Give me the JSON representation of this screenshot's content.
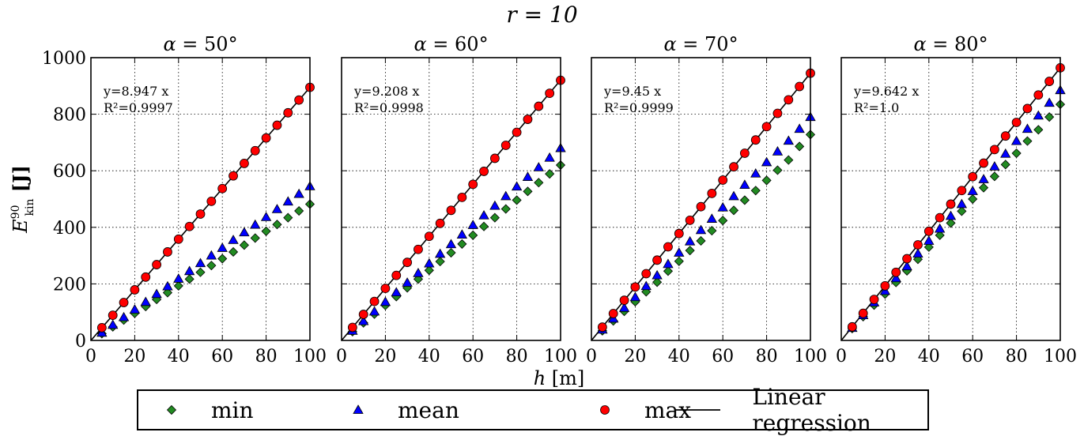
{
  "figure": {
    "suptitle": "r = 10",
    "xlabel": "h [m]",
    "ylabel": "E_kin^90 [J]"
  },
  "legend": {
    "items": [
      {
        "label": "min",
        "color": "#228B22",
        "marker": "diamond"
      },
      {
        "label": "mean",
        "color": "#0000FF",
        "marker": "triangle"
      },
      {
        "label": "max",
        "color": "#FF0000",
        "marker": "circle"
      },
      {
        "label": "Linear regression",
        "color": "#000000",
        "marker": "line"
      }
    ]
  },
  "chart_data": [
    {
      "type": "scatter",
      "title": "α = 50°",
      "annotation": {
        "equation": "y=8.947 x",
        "r2": "R²=0.9997"
      },
      "xlim": [
        0,
        100
      ],
      "ylim": [
        0,
        1000
      ],
      "xticks": [
        0,
        20,
        40,
        60,
        80,
        100
      ],
      "yticks": [
        0,
        200,
        400,
        600,
        800,
        1000
      ],
      "grid": true,
      "x": [
        5,
        10,
        15,
        20,
        25,
        30,
        35,
        40,
        45,
        50,
        55,
        60,
        65,
        70,
        75,
        80,
        85,
        90,
        95,
        100
      ],
      "regression_slope": 8.947,
      "series": [
        {
          "name": "min",
          "values": [
            24,
            48,
            72,
            96,
            120,
            145,
            169,
            193,
            217,
            241,
            265,
            289,
            313,
            337,
            362,
            386,
            410,
            434,
            458,
            482
          ]
        },
        {
          "name": "mean",
          "values": [
            27,
            55,
            82,
            109,
            136,
            164,
            191,
            218,
            245,
            273,
            300,
            327,
            355,
            382,
            409,
            436,
            464,
            491,
            518,
            545
          ]
        },
        {
          "name": "max",
          "values": [
            45,
            89,
            134,
            179,
            224,
            268,
            313,
            358,
            403,
            447,
            492,
            537,
            582,
            626,
            671,
            716,
            761,
            805,
            850,
            895
          ]
        }
      ]
    },
    {
      "type": "scatter",
      "title": "α = 60°",
      "annotation": {
        "equation": "y=9.208 x",
        "r2": "R²=0.9998"
      },
      "xlim": [
        0,
        100
      ],
      "ylim": [
        0,
        1000
      ],
      "xticks": [
        0,
        20,
        40,
        60,
        80,
        100
      ],
      "yticks": [
        0,
        200,
        400,
        600,
        800,
        1000
      ],
      "grid": true,
      "x": [
        5,
        10,
        15,
        20,
        25,
        30,
        35,
        40,
        45,
        50,
        55,
        60,
        65,
        70,
        75,
        80,
        85,
        90,
        95,
        100
      ],
      "regression_slope": 9.208,
      "series": [
        {
          "name": "min",
          "values": [
            31,
            62,
            93,
            124,
            155,
            186,
            217,
            248,
            279,
            310,
            341,
            372,
            403,
            434,
            465,
            496,
            527,
            558,
            589,
            620
          ]
        },
        {
          "name": "mean",
          "values": [
            34,
            68,
            102,
            136,
            170,
            204,
            238,
            272,
            306,
            340,
            374,
            408,
            442,
            476,
            510,
            544,
            578,
            612,
            646,
            680
          ]
        },
        {
          "name": "max",
          "values": [
            46,
            92,
            138,
            184,
            230,
            276,
            322,
            368,
            414,
            460,
            506,
            552,
            598,
            644,
            690,
            736,
            782,
            828,
            874,
            920
          ]
        }
      ]
    },
    {
      "type": "scatter",
      "title": "α = 70°",
      "annotation": {
        "equation": "y=9.45 x",
        "r2": "R²=0.9999"
      },
      "xlim": [
        0,
        100
      ],
      "ylim": [
        0,
        1000
      ],
      "xticks": [
        0,
        20,
        40,
        60,
        80,
        100
      ],
      "yticks": [
        0,
        200,
        400,
        600,
        800,
        1000
      ],
      "grid": true,
      "x": [
        5,
        10,
        15,
        20,
        25,
        30,
        35,
        40,
        45,
        50,
        55,
        60,
        65,
        70,
        75,
        80,
        85,
        90,
        95,
        100
      ],
      "regression_slope": 9.45,
      "series": [
        {
          "name": "min",
          "values": [
            34,
            69,
            103,
            137,
            172,
            206,
            245,
            280,
            318,
            352,
            388,
            424,
            460,
            496,
            530,
            566,
            602,
            638,
            686,
            728
          ]
        },
        {
          "name": "mean",
          "values": [
            38,
            77,
            115,
            153,
            192,
            230,
            270,
            310,
            350,
            390,
            430,
            470,
            510,
            550,
            590,
            630,
            668,
            706,
            748,
            790
          ]
        },
        {
          "name": "max",
          "values": [
            47,
            95,
            142,
            189,
            236,
            284,
            331,
            378,
            425,
            473,
            520,
            567,
            614,
            662,
            709,
            756,
            803,
            851,
            898,
            945
          ]
        }
      ]
    },
    {
      "type": "scatter",
      "title": "α = 80°",
      "annotation": {
        "equation": "y=9.642 x",
        "r2": "R²=1.0"
      },
      "xlim": [
        0,
        100
      ],
      "ylim": [
        0,
        1000
      ],
      "xticks": [
        0,
        20,
        40,
        60,
        80,
        100
      ],
      "yticks": [
        0,
        200,
        400,
        600,
        800,
        1000
      ],
      "grid": true,
      "x": [
        5,
        10,
        15,
        20,
        25,
        30,
        35,
        40,
        45,
        50,
        55,
        60,
        65,
        70,
        75,
        80,
        85,
        90,
        95,
        100
      ],
      "regression_slope": 9.642,
      "series": [
        {
          "name": "min",
          "values": [
            42,
            84,
            125,
            164,
            205,
            246,
            287,
            330,
            372,
            415,
            457,
            500,
            540,
            580,
            622,
            662,
            705,
            745,
            790,
            835
          ]
        },
        {
          "name": "mean",
          "values": [
            44,
            89,
            134,
            175,
            220,
            262,
            307,
            352,
            395,
            440,
            482,
            528,
            570,
            615,
            660,
            705,
            748,
            795,
            840,
            885
          ]
        },
        {
          "name": "max",
          "values": [
            48,
            96,
            145,
            193,
            241,
            289,
            338,
            386,
            434,
            482,
            530,
            579,
            627,
            675,
            723,
            771,
            820,
            868,
            916,
            964
          ]
        }
      ]
    }
  ]
}
